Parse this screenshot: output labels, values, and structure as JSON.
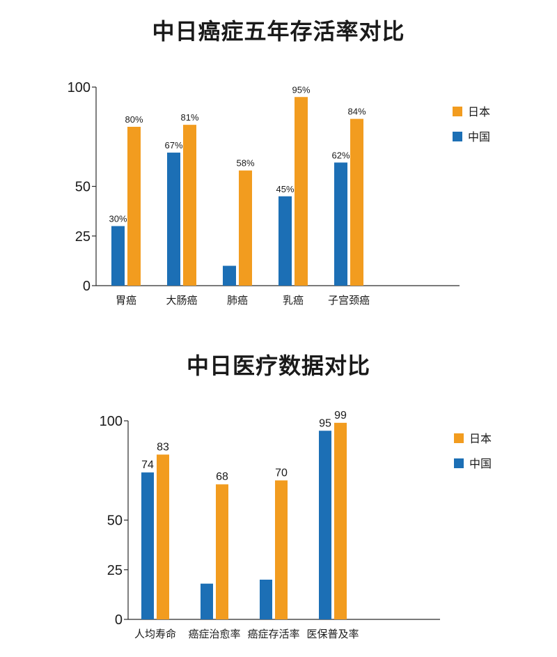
{
  "colors": {
    "japan": "#f29c1f",
    "china": "#1c6fb5"
  },
  "chart_data": [
    {
      "type": "bar",
      "title": "中日癌症五年存活率对比",
      "categories": [
        "胃癌",
        "大肠癌",
        "肺癌",
        "乳癌",
        "子宫颈癌"
      ],
      "ylim": [
        0,
        100
      ],
      "yticks": [
        0,
        25,
        50,
        100
      ],
      "legend_position": "right",
      "series": [
        {
          "name": "中国",
          "color": "#1c6fb5",
          "values": [
            30,
            67,
            10,
            45,
            62
          ],
          "labels": [
            "30%",
            "67%",
            "",
            "45%",
            "62%"
          ]
        },
        {
          "name": "日本",
          "color": "#f29c1f",
          "values": [
            80,
            81,
            58,
            95,
            84
          ],
          "labels": [
            "80%",
            "81%",
            "58%",
            "95%",
            "84%"
          ]
        }
      ]
    },
    {
      "type": "bar",
      "title": "中日医疗数据对比",
      "categories": [
        "人均寿命",
        "癌症治愈率",
        "癌症存活率",
        "医保普及率"
      ],
      "ylim": [
        0,
        100
      ],
      "yticks": [
        0,
        25,
        50,
        100
      ],
      "legend_position": "right",
      "series": [
        {
          "name": "中国",
          "color": "#1c6fb5",
          "values": [
            74,
            18,
            20,
            95
          ],
          "labels": [
            "74",
            "",
            "",
            "95"
          ]
        },
        {
          "name": "日本",
          "color": "#f29c1f",
          "values": [
            83,
            68,
            70,
            99
          ],
          "labels": [
            "83",
            "68",
            "70",
            "99"
          ]
        }
      ]
    }
  ]
}
